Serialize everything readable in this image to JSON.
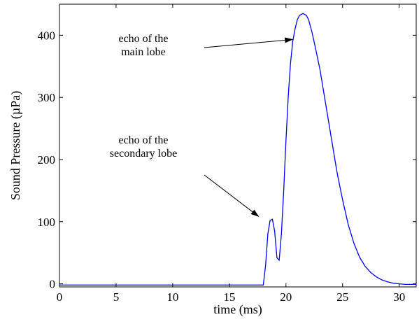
{
  "chart_data": {
    "type": "line",
    "xlabel": "time (ms)",
    "ylabel": "Sound Pressure (µPa)",
    "xlim": [
      0,
      31.5
    ],
    "ylim": [
      -5,
      450
    ],
    "xticks": [
      0,
      5,
      10,
      15,
      20,
      25,
      30
    ],
    "yticks": [
      0,
      100,
      200,
      300,
      400
    ],
    "grid": false,
    "line_color": "#0000ff",
    "series": [
      {
        "x": [
          0,
          17,
          18.0,
          18.2,
          18.4,
          18.6,
          18.8,
          19.0,
          19.2,
          19.4,
          19.6,
          19.8,
          20.0,
          20.2,
          20.4,
          20.6,
          20.8,
          21.0,
          21.2,
          21.5,
          21.8,
          22.0,
          22.3,
          22.6,
          23.0,
          23.5,
          24.0,
          24.5,
          25.0,
          25.5,
          26.0,
          26.5,
          27.0,
          27.5,
          28.0,
          28.5,
          29.0,
          29.5,
          30.0,
          30.5,
          31.5
        ],
        "y": [
          -2,
          -2,
          -2,
          30,
          80,
          102,
          104,
          85,
          42,
          38,
          80,
          150,
          230,
          300,
          355,
          390,
          410,
          425,
          432,
          435,
          432,
          425,
          405,
          380,
          345,
          290,
          235,
          180,
          135,
          95,
          65,
          43,
          28,
          18,
          11,
          6,
          3,
          1,
          0,
          -1,
          -1
        ]
      }
    ],
    "annotations": [
      {
        "lines": [
          "echo of the",
          "main lobe"
        ],
        "arrow_to": [
          21.2,
          400
        ]
      },
      {
        "lines": [
          "echo of the",
          "secondary lobe"
        ],
        "arrow_to": [
          18.2,
          105
        ]
      }
    ]
  }
}
